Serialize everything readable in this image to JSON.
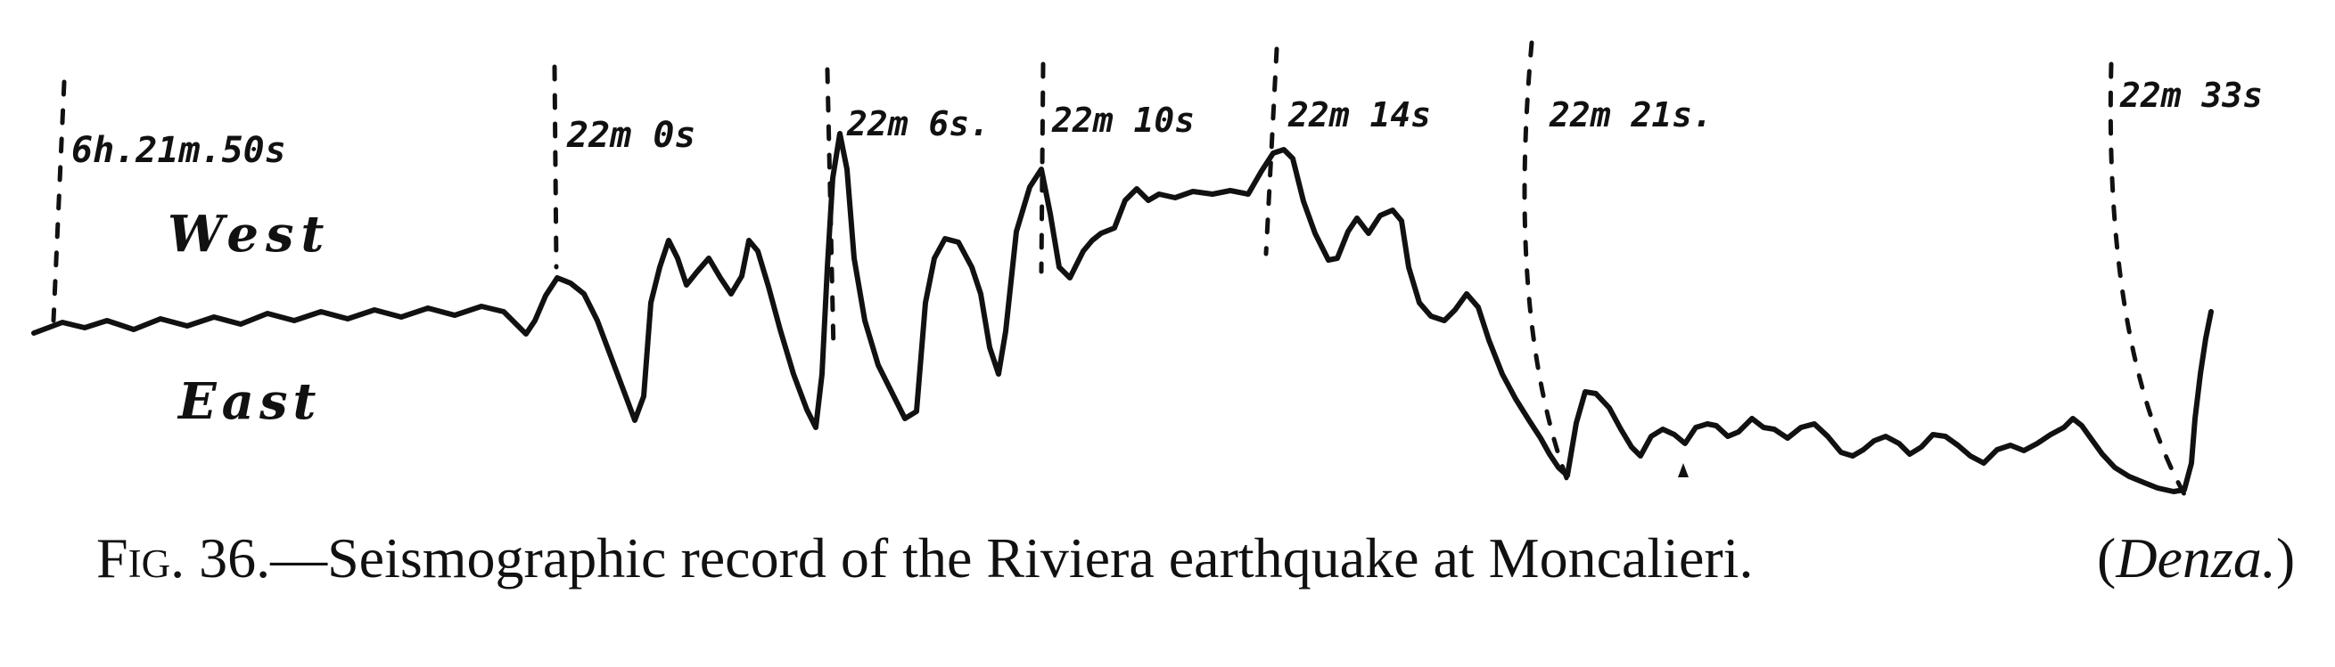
{
  "figure": {
    "time_marks": [
      "6h.21m.50s",
      "22m 0s",
      "22m 6s.",
      "22m 10s",
      "22m 14s",
      "22m 21s.",
      "22m 33s"
    ],
    "direction_labels": {
      "west": "West",
      "east": "East"
    },
    "caption": {
      "prefix": "Fig. 36.",
      "dash": "—",
      "text": "Seismographic record of the Riviera earthquake at Moncalieri.",
      "attribution_open": "(",
      "attribution": "Denza.",
      "attribution_close": ")"
    }
  },
  "colors": {
    "ink": "#111111",
    "paper": "#ffffff"
  }
}
